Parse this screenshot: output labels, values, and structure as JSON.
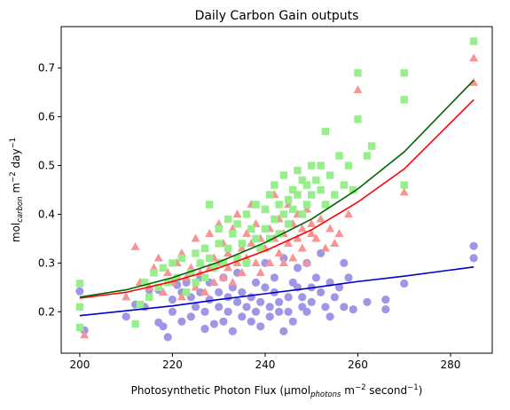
{
  "chart_data": {
    "type": "scatter",
    "title": "Daily Carbon Gain outputs",
    "xlabel": {
      "prefix": "Photosynthetic Photon Flux (μmol",
      "sub": "photons",
      "mid": " m",
      "sup": "−2",
      "suffix": " second",
      "sup2": "−1",
      "end": ")"
    },
    "ylabel": {
      "prefix": "mol",
      "sub": "carbon",
      "mid": " m",
      "sup": "−2",
      "suffix": " day",
      "sup2": "−1"
    },
    "xlim": [
      196,
      289
    ],
    "ylim": [
      0.115,
      0.785
    ],
    "xticks": [
      200,
      220,
      240,
      260,
      280
    ],
    "xtick_labels": [
      "200",
      "220",
      "240",
      "260",
      "280"
    ],
    "yticks": [
      0.2,
      0.3,
      0.4,
      0.5,
      0.6,
      0.7
    ],
    "ytick_labels": [
      "0.2",
      "0.3",
      "0.4",
      "0.5",
      "0.6",
      "0.7"
    ],
    "grid": false,
    "legend": "none",
    "series": [
      {
        "marker": "circle",
        "color": "#9f97e6",
        "points": [
          [
            200,
            0.242
          ],
          [
            201,
            0.162
          ],
          [
            210,
            0.19
          ],
          [
            212,
            0.215
          ],
          [
            214,
            0.21
          ],
          [
            215,
            0.245
          ],
          [
            217,
            0.178
          ],
          [
            217,
            0.245
          ],
          [
            218,
            0.17
          ],
          [
            219,
            0.148
          ],
          [
            220,
            0.2
          ],
          [
            220,
            0.225
          ],
          [
            221,
            0.255
          ],
          [
            222,
            0.18
          ],
          [
            222,
            0.24
          ],
          [
            223,
            0.26
          ],
          [
            224,
            0.19
          ],
          [
            224,
            0.23
          ],
          [
            225,
            0.21
          ],
          [
            226,
            0.24
          ],
          [
            226,
            0.27
          ],
          [
            227,
            0.165
          ],
          [
            227,
            0.2
          ],
          [
            228,
            0.225
          ],
          [
            228,
            0.26
          ],
          [
            229,
            0.29
          ],
          [
            229,
            0.175
          ],
          [
            230,
            0.21
          ],
          [
            230,
            0.24
          ],
          [
            231,
            0.18
          ],
          [
            231,
            0.27
          ],
          [
            232,
            0.2
          ],
          [
            232,
            0.23
          ],
          [
            233,
            0.16
          ],
          [
            233,
            0.25
          ],
          [
            234,
            0.22
          ],
          [
            234,
            0.28
          ],
          [
            235,
            0.19
          ],
          [
            235,
            0.24
          ],
          [
            236,
            0.21
          ],
          [
            236,
            0.3
          ],
          [
            237,
            0.23
          ],
          [
            237,
            0.18
          ],
          [
            238,
            0.26
          ],
          [
            238,
            0.2
          ],
          [
            239,
            0.22
          ],
          [
            239,
            0.17
          ],
          [
            240,
            0.25
          ],
          [
            240,
            0.3
          ],
          [
            241,
            0.19
          ],
          [
            241,
            0.21
          ],
          [
            242,
            0.27
          ],
          [
            242,
            0.24
          ],
          [
            243,
            0.2
          ],
          [
            243,
            0.22
          ],
          [
            244,
            0.31
          ],
          [
            244,
            0.16
          ],
          [
            245,
            0.23
          ],
          [
            245,
            0.2
          ],
          [
            246,
            0.26
          ],
          [
            246,
            0.18
          ],
          [
            247,
            0.25
          ],
          [
            247,
            0.29
          ],
          [
            248,
            0.21
          ],
          [
            248,
            0.23
          ],
          [
            249,
            0.3
          ],
          [
            249,
            0.2
          ],
          [
            250,
            0.25
          ],
          [
            250,
            0.22
          ],
          [
            251,
            0.27
          ],
          [
            252,
            0.24
          ],
          [
            252,
            0.32
          ],
          [
            253,
            0.21
          ],
          [
            254,
            0.26
          ],
          [
            254,
            0.19
          ],
          [
            255,
            0.23
          ],
          [
            256,
            0.25
          ],
          [
            257,
            0.21
          ],
          [
            257,
            0.3
          ],
          [
            258,
            0.27
          ],
          [
            259,
            0.205
          ],
          [
            262,
            0.22
          ],
          [
            266,
            0.225
          ],
          [
            266,
            0.205
          ],
          [
            270,
            0.258
          ],
          [
            285,
            0.335
          ],
          [
            285,
            0.31
          ]
        ]
      },
      {
        "marker": "triangle",
        "color": "#f79494",
        "points": [
          [
            201,
            0.152
          ],
          [
            210,
            0.23
          ],
          [
            212,
            0.333
          ],
          [
            213,
            0.26
          ],
          [
            215,
            0.25
          ],
          [
            216,
            0.29
          ],
          [
            217,
            0.31
          ],
          [
            218,
            0.24
          ],
          [
            219,
            0.28
          ],
          [
            220,
            0.26
          ],
          [
            221,
            0.3
          ],
          [
            222,
            0.23
          ],
          [
            222,
            0.32
          ],
          [
            223,
            0.27
          ],
          [
            224,
            0.29
          ],
          [
            225,
            0.35
          ],
          [
            225,
            0.25
          ],
          [
            226,
            0.3
          ],
          [
            226,
            0.28
          ],
          [
            227,
            0.33
          ],
          [
            227,
            0.24
          ],
          [
            228,
            0.36
          ],
          [
            228,
            0.29
          ],
          [
            229,
            0.31
          ],
          [
            229,
            0.26
          ],
          [
            230,
            0.38
          ],
          [
            230,
            0.3
          ],
          [
            231,
            0.27
          ],
          [
            231,
            0.34
          ],
          [
            232,
            0.32
          ],
          [
            232,
            0.29
          ],
          [
            233,
            0.37
          ],
          [
            233,
            0.26
          ],
          [
            234,
            0.3
          ],
          [
            234,
            0.4
          ],
          [
            235,
            0.33
          ],
          [
            235,
            0.28
          ],
          [
            236,
            0.36
          ],
          [
            236,
            0.31
          ],
          [
            237,
            0.42
          ],
          [
            237,
            0.34
          ],
          [
            238,
            0.3
          ],
          [
            238,
            0.38
          ],
          [
            239,
            0.35
          ],
          [
            239,
            0.28
          ],
          [
            240,
            0.41
          ],
          [
            240,
            0.33
          ],
          [
            241,
            0.37
          ],
          [
            241,
            0.3
          ],
          [
            242,
            0.44
          ],
          [
            242,
            0.35
          ],
          [
            243,
            0.32
          ],
          [
            243,
            0.39
          ],
          [
            244,
            0.36
          ],
          [
            244,
            0.3
          ],
          [
            245,
            0.42
          ],
          [
            245,
            0.34
          ],
          [
            246,
            0.38
          ],
          [
            246,
            0.31
          ],
          [
            247,
            0.4
          ],
          [
            247,
            0.35
          ],
          [
            248,
            0.37
          ],
          [
            248,
            0.33
          ],
          [
            249,
            0.41
          ],
          [
            249,
            0.3
          ],
          [
            250,
            0.38
          ],
          [
            250,
            0.36
          ],
          [
            251,
            0.35
          ],
          [
            252,
            0.39
          ],
          [
            253,
            0.33
          ],
          [
            254,
            0.37
          ],
          [
            255,
            0.34
          ],
          [
            256,
            0.36
          ],
          [
            258,
            0.4
          ],
          [
            260,
            0.655
          ],
          [
            270,
            0.445
          ],
          [
            285,
            0.72
          ],
          [
            285,
            0.67
          ]
        ]
      },
      {
        "marker": "square",
        "color": "#96ef8a",
        "points": [
          [
            200,
            0.258
          ],
          [
            200,
            0.21
          ],
          [
            200,
            0.168
          ],
          [
            212,
            0.175
          ],
          [
            213,
            0.215
          ],
          [
            214,
            0.26
          ],
          [
            215,
            0.23
          ],
          [
            216,
            0.28
          ],
          [
            217,
            0.25
          ],
          [
            218,
            0.29
          ],
          [
            219,
            0.26
          ],
          [
            220,
            0.3
          ],
          [
            221,
            0.27
          ],
          [
            222,
            0.31
          ],
          [
            223,
            0.24
          ],
          [
            224,
            0.28
          ],
          [
            225,
            0.32
          ],
          [
            225,
            0.26
          ],
          [
            226,
            0.3
          ],
          [
            227,
            0.33
          ],
          [
            227,
            0.27
          ],
          [
            228,
            0.42
          ],
          [
            228,
            0.31
          ],
          [
            229,
            0.29
          ],
          [
            230,
            0.37
          ],
          [
            230,
            0.34
          ],
          [
            231,
            0.3
          ],
          [
            232,
            0.39
          ],
          [
            232,
            0.33
          ],
          [
            233,
            0.36
          ],
          [
            234,
            0.31
          ],
          [
            234,
            0.38
          ],
          [
            235,
            0.34
          ],
          [
            236,
            0.4
          ],
          [
            236,
            0.3
          ],
          [
            237,
            0.37
          ],
          [
            238,
            0.35
          ],
          [
            238,
            0.42
          ],
          [
            239,
            0.33
          ],
          [
            240,
            0.41
          ],
          [
            240,
            0.37
          ],
          [
            241,
            0.44
          ],
          [
            241,
            0.35
          ],
          [
            242,
            0.46
          ],
          [
            242,
            0.39
          ],
          [
            243,
            0.42
          ],
          [
            243,
            0.36
          ],
          [
            244,
            0.48
          ],
          [
            244,
            0.4
          ],
          [
            245,
            0.43
          ],
          [
            245,
            0.38
          ],
          [
            246,
            0.45
          ],
          [
            246,
            0.41
          ],
          [
            247,
            0.49
          ],
          [
            247,
            0.44
          ],
          [
            248,
            0.47
          ],
          [
            248,
            0.4
          ],
          [
            249,
            0.46
          ],
          [
            249,
            0.42
          ],
          [
            250,
            0.5
          ],
          [
            250,
            0.44
          ],
          [
            251,
            0.47
          ],
          [
            252,
            0.45
          ],
          [
            252,
            0.5
          ],
          [
            253,
            0.42
          ],
          [
            253,
            0.57
          ],
          [
            254,
            0.48
          ],
          [
            255,
            0.44
          ],
          [
            256,
            0.52
          ],
          [
            257,
            0.46
          ],
          [
            258,
            0.5
          ],
          [
            259,
            0.45
          ],
          [
            260,
            0.69
          ],
          [
            260,
            0.595
          ],
          [
            262,
            0.52
          ],
          [
            263,
            0.54
          ],
          [
            270,
            0.69
          ],
          [
            270,
            0.635
          ],
          [
            270,
            0.46
          ],
          [
            285,
            0.755
          ]
        ]
      }
    ],
    "lines": [
      {
        "color": "#0000cc",
        "x": [
          200,
          210,
          220,
          230,
          240,
          250,
          260,
          270,
          285
        ],
        "y": [
          0.192,
          0.202,
          0.212,
          0.225,
          0.237,
          0.249,
          0.262,
          0.273,
          0.292
        ]
      },
      {
        "color": "#ff0000",
        "x": [
          200,
          210,
          220,
          230,
          240,
          250,
          260,
          270,
          285
        ],
        "y": [
          0.228,
          0.24,
          0.262,
          0.29,
          0.325,
          0.368,
          0.425,
          0.493,
          0.635
        ]
      },
      {
        "color": "#006400",
        "x": [
          200,
          210,
          220,
          230,
          240,
          250,
          260,
          270,
          285
        ],
        "y": [
          0.23,
          0.245,
          0.27,
          0.302,
          0.342,
          0.39,
          0.452,
          0.528,
          0.675
        ]
      }
    ]
  }
}
